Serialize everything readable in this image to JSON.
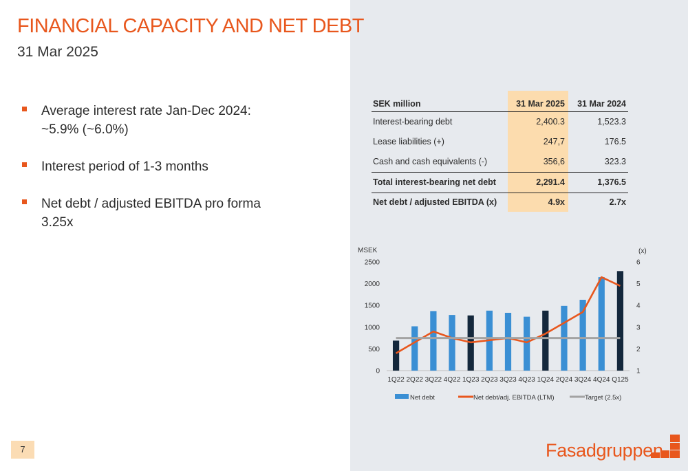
{
  "page": {
    "title": "FINANCIAL CAPACITY AND NET DEBT",
    "subtitle": "31 Mar 2025",
    "page_number": "7",
    "logo_text": "Fasadgruppen",
    "accent_color": "#e8571d"
  },
  "bullets": [
    "Average interest rate Jan-Dec 2024: ~5.9% (~6.0%)",
    "Interest period of 1-3 months",
    "Net debt / adjusted EBITDA pro forma 3.25x"
  ],
  "table": {
    "headers": [
      "SEK million",
      "31 Mar 2025",
      "31 Mar 2024"
    ],
    "rows": [
      [
        "Interest-bearing debt",
        "2,400.3",
        "1,523.3"
      ],
      [
        "Lease liabilities (+)",
        "247,7",
        "176.5"
      ],
      [
        "Cash and cash equivalents (-)",
        "356,6",
        "323.3"
      ],
      [
        "Total interest-bearing net debt",
        "2,291.4",
        "1,376.5"
      ],
      [
        "Net debt / adjusted EBITDA (x)",
        "4.9x",
        "2.7x"
      ]
    ]
  },
  "chart_data": {
    "type": "bar",
    "ylabel": "MSEK",
    "y2label": "(x)",
    "ylim": [
      0,
      2500
    ],
    "y2lim": [
      1,
      6
    ],
    "yticks": [
      0,
      500,
      1000,
      1500,
      2000,
      2500
    ],
    "y2ticks": [
      1,
      2,
      3,
      4,
      5,
      6
    ],
    "categories": [
      "1Q22",
      "2Q22",
      "3Q22",
      "4Q22",
      "1Q23",
      "2Q23",
      "3Q23",
      "4Q23",
      "1Q24",
      "2Q24",
      "3Q24",
      "4Q24",
      "Q125"
    ],
    "series": [
      {
        "name": "Net debt",
        "type": "bar",
        "axis": "left",
        "color": "#3a8fd4",
        "highlight_color": "#14283c",
        "highlight_categories": [
          "1Q22",
          "1Q23",
          "1Q24",
          "Q125"
        ],
        "values": [
          690,
          1020,
          1370,
          1280,
          1270,
          1380,
          1330,
          1240,
          1380,
          1490,
          1630,
          2150,
          2290
        ]
      },
      {
        "name": "Net debt/adj. EBITDA (LTM)",
        "type": "line",
        "axis": "right",
        "color": "#e8571d",
        "values": [
          1.8,
          2.3,
          2.8,
          2.5,
          2.3,
          2.4,
          2.5,
          2.3,
          2.7,
          3.2,
          3.7,
          5.3,
          4.9
        ]
      },
      {
        "name": "Target (2.5x)",
        "type": "line",
        "axis": "right",
        "color": "#a3a3a3",
        "values": [
          2.5,
          2.5,
          2.5,
          2.5,
          2.5,
          2.5,
          2.5,
          2.5,
          2.5,
          2.5,
          2.5,
          2.5,
          2.5
        ]
      }
    ],
    "legend": "bottom"
  }
}
